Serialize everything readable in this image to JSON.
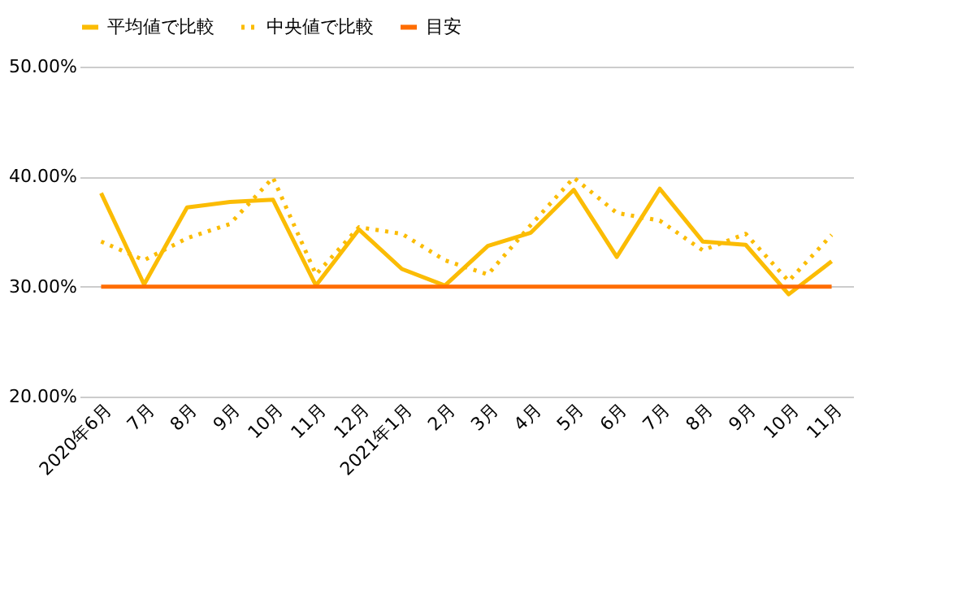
{
  "chart_data": {
    "type": "line",
    "categories": [
      "2020年6月",
      "7月",
      "8月",
      "9月",
      "10月",
      "11月",
      "12月",
      "2021年1月",
      "2月",
      "3月",
      "4月",
      "5月",
      "6月",
      "7月",
      "8月",
      "9月",
      "10月",
      "11月"
    ],
    "series": [
      {
        "name": "平均値で比較",
        "color": "#fbbc04",
        "line_style": "solid",
        "values": [
          38.5,
          30.2,
          37.2,
          37.7,
          37.9,
          30.1,
          35.2,
          31.6,
          30.1,
          33.7,
          34.9,
          38.8,
          32.7,
          38.9,
          34.1,
          33.8,
          29.3,
          32.3
        ]
      },
      {
        "name": "中央値で比較",
        "color": "#fbbc04",
        "line_style": "dotted",
        "values": [
          34.1,
          32.4,
          34.4,
          35.7,
          39.9,
          31.1,
          35.4,
          34.8,
          32.4,
          31.1,
          35.6,
          39.9,
          36.7,
          36.0,
          33.3,
          34.8,
          30.5,
          34.7
        ]
      },
      {
        "name": "目安",
        "color": "#ff6d00",
        "line_style": "solid",
        "values": [
          30,
          30,
          30,
          30,
          30,
          30,
          30,
          30,
          30,
          30,
          30,
          30,
          30,
          30,
          30,
          30,
          30,
          30
        ]
      }
    ],
    "ylim": [
      20,
      50
    ],
    "yticks": [
      {
        "value": 20,
        "label": "20.00%"
      },
      {
        "value": 30,
        "label": "30.00%"
      },
      {
        "value": 40,
        "label": "40.00%"
      },
      {
        "value": 50,
        "label": "50.00%"
      }
    ],
    "grid": "y",
    "legend": "top",
    "marker": "none"
  }
}
